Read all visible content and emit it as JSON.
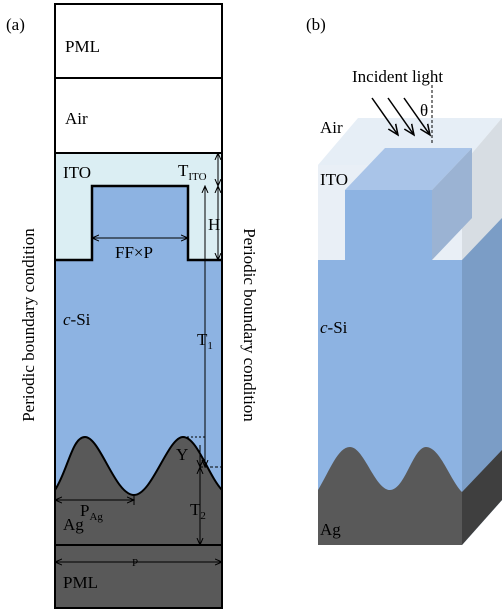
{
  "panel_a": {
    "label": "(a)",
    "pml_top": "PML",
    "air": "Air",
    "ito": "ITO",
    "si": {
      "italic": "c",
      "rest": "-Si"
    },
    "ag": "Ag",
    "pml_bottom": "PML",
    "t_ito": {
      "main": "T",
      "sub": "ITO"
    },
    "h": "H",
    "ff_p": "FF×P",
    "t1": {
      "main": "T",
      "sub": "1"
    },
    "y": "Y",
    "p_ag": {
      "main": "P",
      "sub": "Ag"
    },
    "t2": {
      "main": "T",
      "sub": "2"
    },
    "p": "P",
    "boundary_left": "Periodic boundary condition",
    "boundary_right": "Periodic boundary condition"
  },
  "panel_b": {
    "label": "(b)",
    "incident": "Incident light",
    "theta": "θ",
    "air": "Air",
    "ito": "ITO",
    "si": {
      "italic": "c",
      "rest": "-Si"
    },
    "ag": "Ag"
  }
}
